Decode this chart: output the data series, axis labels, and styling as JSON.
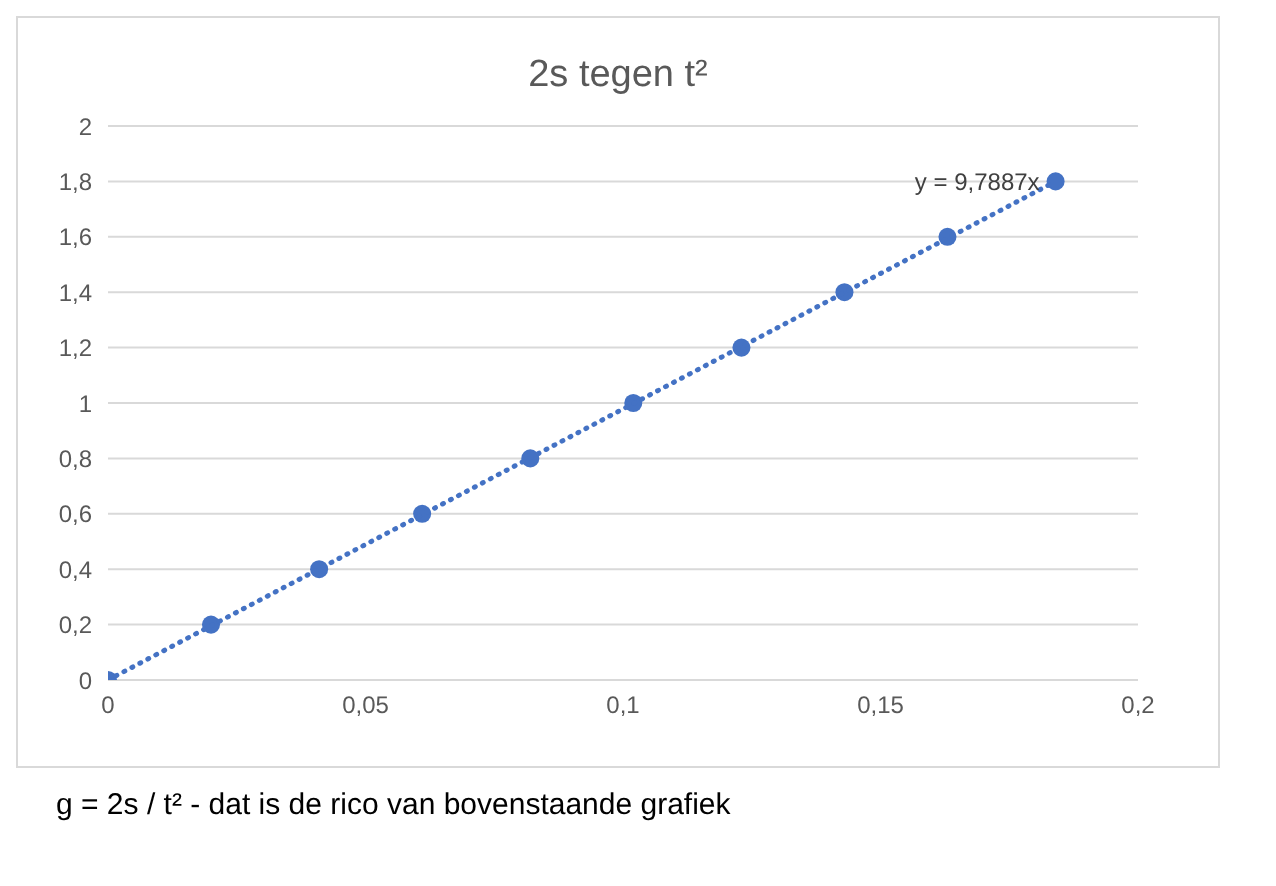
{
  "chart_data": {
    "type": "scatter",
    "title": "2s tegen t²",
    "x": [
      0,
      0.02,
      0.041,
      0.061,
      0.082,
      0.102,
      0.123,
      0.143,
      0.163,
      0.184
    ],
    "series": [
      {
        "color": "#4472c4",
        "values": [
          0,
          0.2,
          0.4,
          0.6,
          0.8,
          1,
          1.2,
          1.4,
          1.6,
          1.8
        ],
        "marker": "circle"
      },
      {
        "type": "line",
        "color": "#4472c4",
        "x": [
          0,
          0.184
        ],
        "values": [
          0,
          1.8
        ],
        "line_style": "dotted",
        "marker": "none"
      }
    ],
    "xlim": [
      0,
      0.2
    ],
    "xticks": [
      0,
      {
        "value": 0.05,
        "label": "0,05"
      },
      {
        "value": 0.1,
        "label": "0,1"
      },
      {
        "value": 0.15,
        "label": "0,15"
      },
      {
        "value": 0.2,
        "label": "0,2"
      }
    ],
    "ylim": [
      0,
      2
    ],
    "yticks": [
      0,
      {
        "value": 0.2,
        "label": "0,2"
      },
      {
        "value": 0.4,
        "label": "0,4"
      },
      {
        "value": 0.6,
        "label": "0,6"
      },
      {
        "value": 0.8,
        "label": "0,8"
      },
      1,
      {
        "value": 1.2,
        "label": "1,2"
      },
      {
        "value": 1.4,
        "label": "1,4"
      },
      {
        "value": 1.6,
        "label": "1,6"
      },
      {
        "value": 1.8,
        "label": "1,8"
      },
      2
    ],
    "grid": "y",
    "legend": false,
    "annotations": [
      {
        "text": "y = 9,7887x",
        "x": 0.184,
        "y": 1.8
      },
      "g = 2s / t² - dat is de rico van bovenstaande grafiek"
    ]
  }
}
